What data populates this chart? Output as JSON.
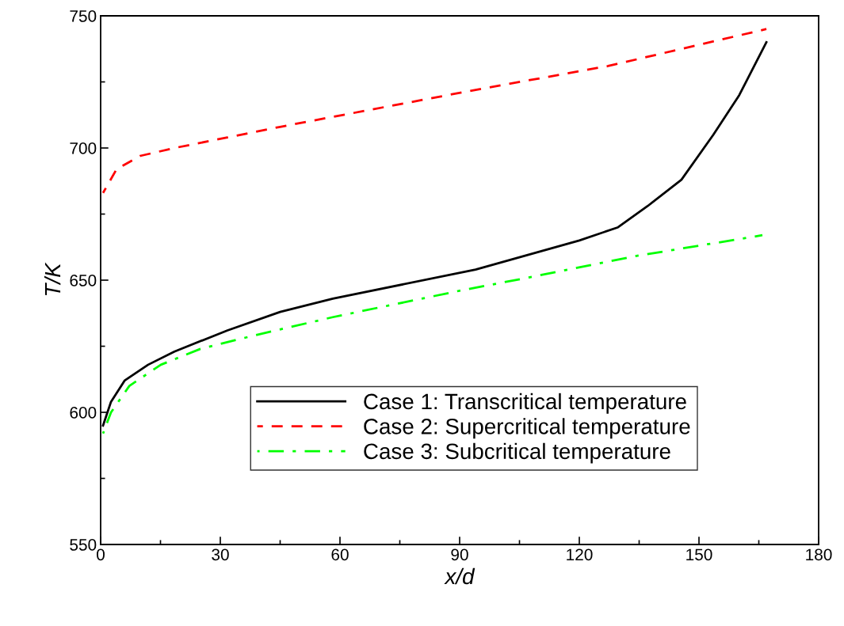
{
  "chart_data": {
    "type": "line",
    "xlabel": "x/d",
    "ylabel": "T/K",
    "xlim": [
      0,
      180
    ],
    "ylim": [
      550,
      750
    ],
    "xticks": [
      0,
      {
        "value": 15,
        "label": null
      },
      30,
      {
        "value": 45,
        "label": null
      },
      60,
      {
        "value": 75,
        "label": null
      },
      90,
      {
        "value": 105,
        "label": null
      },
      120,
      {
        "value": 135,
        "label": null
      },
      150,
      {
        "value": 165,
        "label": null
      },
      180
    ],
    "yticks": [
      550,
      {
        "value": 575,
        "label": null
      },
      600,
      {
        "value": 625,
        "label": null
      },
      650,
      {
        "value": 675,
        "label": null
      },
      700,
      {
        "value": 725,
        "label": null
      },
      750
    ],
    "grid": false,
    "legend": "bottom",
    "marker": "none",
    "series": [
      {
        "name": "Case 1: Transcritical temperature",
        "color": "#000000",
        "line_style": "solid",
        "x": [
          0.6,
          2.6,
          6,
          11.9,
          18.5,
          31.8,
          45,
          58.2,
          94,
          120,
          129.7,
          137.1,
          145.6,
          153.6,
          160.1,
          166.9
        ],
        "values": [
          595,
          604,
          612,
          618,
          623,
          631,
          638,
          643,
          654,
          665,
          670,
          678,
          688,
          705,
          720,
          740
        ]
      },
      {
        "name": "Case 2: Supercritical temperature",
        "color": "#ff0000",
        "line_style": "dashed",
        "x": [
          0.6,
          4,
          9.9,
          18.5,
          31.8,
          45,
          94,
          127.2,
          166.9
        ],
        "values": [
          683,
          692,
          697,
          700,
          704,
          708,
          722,
          731,
          745
        ]
      },
      {
        "name": "Case 3: Subcritical temperature",
        "color": "#00ff00",
        "line_style": "dashdot",
        "x": [
          0.6,
          2.6,
          7.2,
          15.1,
          25,
          38.3,
          58.2,
          90,
          107.3,
          133.7,
          165.9
        ],
        "values": [
          592,
          600,
          610,
          618,
          624,
          629,
          636,
          646,
          651,
          659,
          667
        ]
      }
    ]
  }
}
